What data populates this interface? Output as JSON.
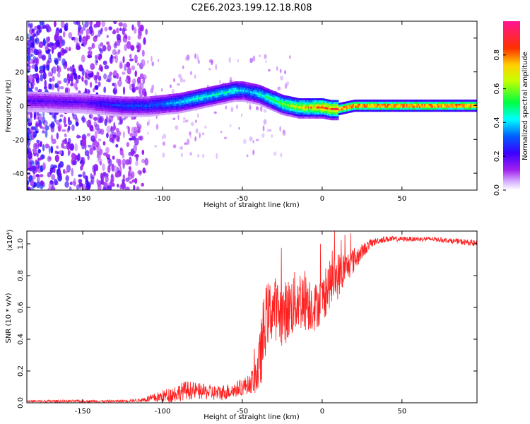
{
  "title": "C2E6.2023.199.12.18.R08",
  "chart_data": [
    {
      "type": "heatmap",
      "name": "spectrogram",
      "xlabel": "Height of straight line (km)",
      "ylabel": "Frequency (Hz)",
      "xlim": [
        -185,
        97
      ],
      "ylim": [
        -50,
        50
      ],
      "xticks": [
        -150,
        -100,
        -50,
        0,
        50
      ],
      "yticks": [
        -40,
        -20,
        0,
        20,
        40
      ],
      "tick_labels_x": [
        "-150",
        "-100",
        "-50",
        "0",
        "50"
      ],
      "tick_labels_y": [
        "-40",
        "-20",
        "0",
        "20",
        "40"
      ],
      "ridge": {
        "x": [
          -185,
          -150,
          -125,
          -110,
          -100,
          -90,
          -80,
          -70,
          -60,
          -55,
          -50,
          -45,
          -40,
          -35,
          -30,
          -25,
          -20,
          -15,
          -10,
          -5,
          0,
          5,
          10,
          15,
          20,
          30,
          50,
          70,
          97
        ],
        "freq": [
          3,
          2,
          0,
          0,
          1,
          2,
          4,
          6,
          8,
          9,
          9,
          8,
          7,
          5,
          3,
          1,
          0,
          -1,
          -1,
          -1,
          -1,
          -2,
          -2,
          -1,
          0,
          0,
          0,
          0,
          0
        ],
        "amplitude": [
          0.2,
          0.2,
          0.3,
          0.3,
          0.35,
          0.4,
          0.45,
          0.45,
          0.45,
          0.45,
          0.4,
          0.4,
          0.45,
          0.5,
          0.55,
          0.6,
          0.65,
          0.7,
          0.75,
          0.8,
          0.85,
          0.85,
          0.9,
          0.9,
          0.9,
          0.9,
          0.9,
          0.9,
          0.9
        ]
      },
      "colorbar": {
        "label": "Normalized spectral amplitude",
        "range": [
          0,
          1
        ],
        "ticks": [
          "0.0",
          "0.2",
          "0.4",
          "0.6",
          "0.8"
        ],
        "tick_values": [
          0.0,
          0.2,
          0.4,
          0.6,
          0.8
        ],
        "colors": [
          "#ffffff",
          "#a020f0",
          "#0000ff",
          "#00ffff",
          "#00ff00",
          "#ffff00",
          "#ff0000",
          "#ff1493"
        ]
      }
    },
    {
      "type": "line",
      "name": "snr",
      "xlabel": "Height of straight line (km)",
      "ylabel": "SNR (10 * v/v)",
      "scale_label": "(x10⁴)",
      "xlim": [
        -185,
        97
      ],
      "ylim": [
        0,
        1.08
      ],
      "xticks": [
        -150,
        -100,
        -50,
        0,
        50
      ],
      "yticks": [
        0.0,
        0.2,
        0.4,
        0.6,
        0.8,
        1.0
      ],
      "tick_labels_x": [
        "-150",
        "-100",
        "-50",
        "0",
        "50"
      ],
      "tick_labels_y": [
        "0.0",
        "0.2",
        "0.4",
        "0.6",
        "0.8",
        "1.0"
      ],
      "line_color": "#ff2020",
      "x": [
        -185,
        -170,
        -150,
        -130,
        -115,
        -105,
        -95,
        -85,
        -75,
        -65,
        -55,
        -45,
        -40,
        -37,
        -35,
        -30,
        -25,
        -20,
        -15,
        -10,
        -5,
        0,
        5,
        10,
        15,
        20,
        25,
        30,
        35,
        40,
        50,
        60,
        70,
        80,
        90,
        97
      ],
      "y": [
        0.01,
        0.01,
        0.01,
        0.01,
        0.015,
        0.03,
        0.05,
        0.08,
        0.07,
        0.06,
        0.08,
        0.12,
        0.2,
        0.4,
        0.55,
        0.6,
        0.55,
        0.6,
        0.65,
        0.65,
        0.6,
        0.65,
        0.75,
        0.8,
        0.85,
        0.9,
        0.95,
        1.0,
        1.02,
        1.03,
        1.03,
        1.03,
        1.03,
        1.02,
        1.01,
        1.0
      ],
      "noise": [
        0.005,
        0.008,
        0.008,
        0.006,
        0.01,
        0.03,
        0.05,
        0.06,
        0.05,
        0.05,
        0.05,
        0.06,
        0.15,
        0.25,
        0.2,
        0.2,
        0.2,
        0.2,
        0.2,
        0.2,
        0.15,
        0.15,
        0.15,
        0.15,
        0.1,
        0.08,
        0.05,
        0.03,
        0.02,
        0.02,
        0.015,
        0.015,
        0.015,
        0.015,
        0.02,
        0.02
      ]
    }
  ]
}
